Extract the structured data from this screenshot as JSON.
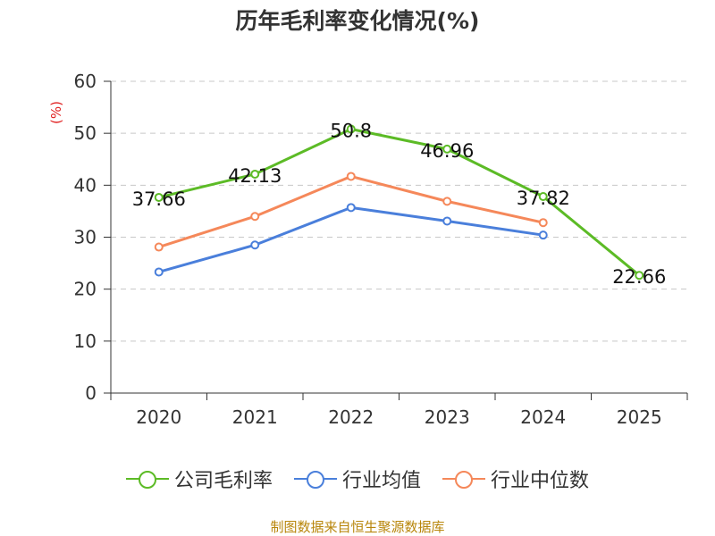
{
  "chart_data": {
    "type": "line",
    "title": "历年毛利率变化情况(%)",
    "ylabel": "(%)",
    "xlabel": "",
    "categories": [
      "2020",
      "2021",
      "2022",
      "2023",
      "2024",
      "2025"
    ],
    "ylim": [
      0,
      60
    ],
    "yticks": [
      0,
      10,
      20,
      30,
      40,
      50,
      60
    ],
    "grid": true,
    "legend_position": "bottom",
    "series": [
      {
        "name": "公司毛利率",
        "color": "#5cbb26",
        "values": [
          37.66,
          42.13,
          50.8,
          46.96,
          37.82,
          22.66
        ],
        "labels": [
          "37.66",
          "42.13",
          "50.8",
          "46.96",
          "37.82",
          "22.66"
        ]
      },
      {
        "name": "行业均值",
        "color": "#4a7fdb",
        "values": [
          23.3,
          28.5,
          35.7,
          33.1,
          30.4,
          null
        ]
      },
      {
        "name": "行业中位数",
        "color": "#f5885a",
        "values": [
          28.1,
          34.0,
          41.7,
          36.9,
          32.8,
          null
        ]
      }
    ]
  },
  "source": "制图数据来自恒生聚源数据库"
}
